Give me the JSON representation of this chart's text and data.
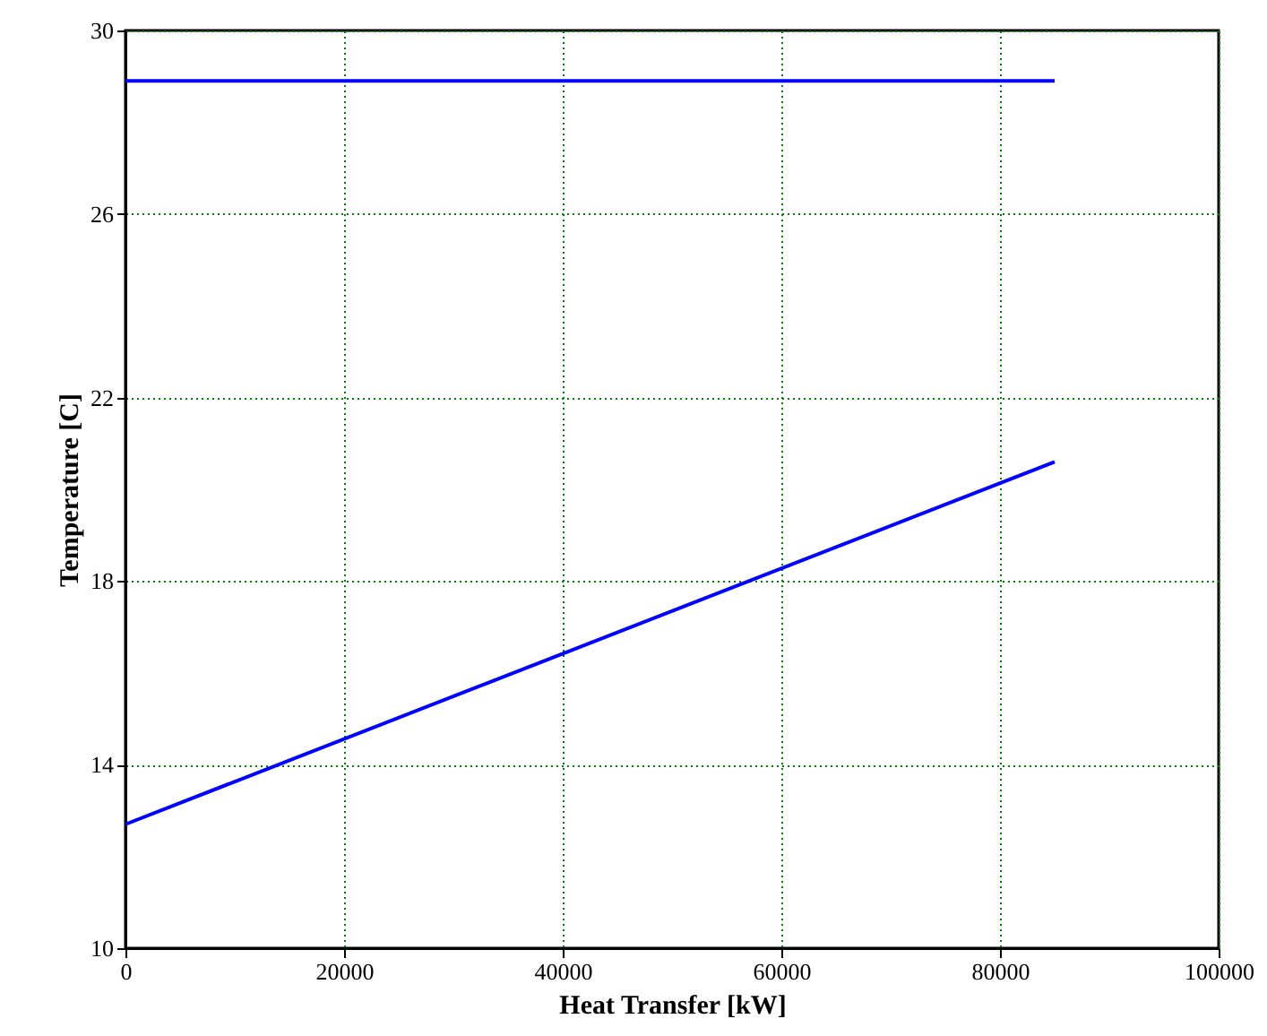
{
  "chart_data": {
    "type": "line",
    "xlabel": "Heat Transfer [kW]",
    "ylabel": "Temperature [C]",
    "series": [
      {
        "color": "#0000ff",
        "values": [
          28.9,
          28.9
        ]
      },
      {
        "color": "#0000ff",
        "values": [
          12.7,
          20.6
        ]
      }
    ],
    "x": [
      0,
      85000
    ],
    "xlim": [
      0,
      100000
    ],
    "xticks": [
      0,
      20000,
      40000,
      60000,
      80000,
      100000
    ],
    "ylim": [
      10,
      30
    ],
    "yticks": [
      10,
      14,
      18,
      22,
      26,
      30
    ],
    "grid": true,
    "line_style": "solid"
  }
}
